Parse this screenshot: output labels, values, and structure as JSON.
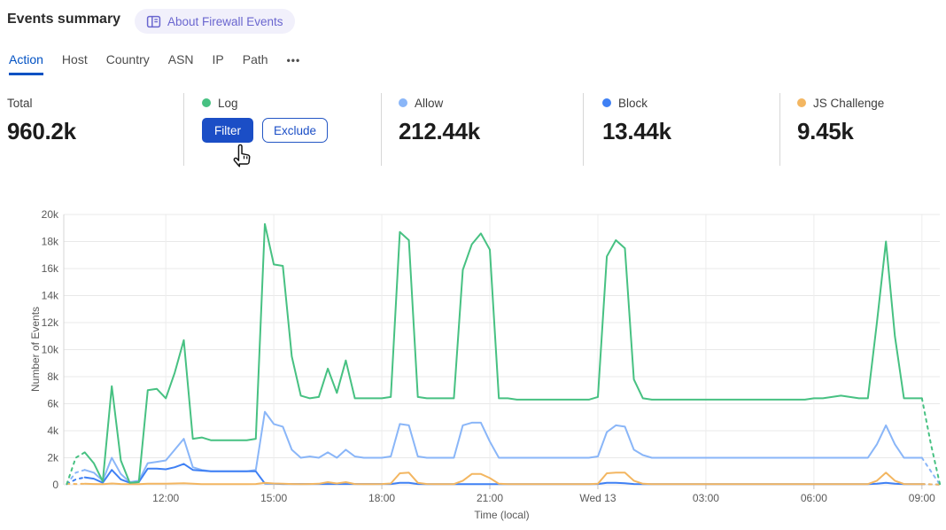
{
  "header": {
    "title": "Events summary",
    "about_badge": {
      "label": "About Firewall Events",
      "icon": "book-icon",
      "bg": "#f1f0fb",
      "color": "#6a66cf"
    }
  },
  "tabs": {
    "items": [
      {
        "label": "Action",
        "active": true
      },
      {
        "label": "Host",
        "active": false
      },
      {
        "label": "Country",
        "active": false
      },
      {
        "label": "ASN",
        "active": false
      },
      {
        "label": "IP",
        "active": false
      },
      {
        "label": "Path",
        "active": false
      },
      {
        "label": "•••",
        "active": false
      }
    ],
    "active_color": "#0051c3"
  },
  "stats": {
    "total": {
      "label": "Total",
      "value": "960.2k"
    },
    "cards": [
      {
        "label": "Log",
        "color": "#47c182",
        "filter_label": "Filter",
        "exclude_label": "Exclude"
      },
      {
        "label": "Allow",
        "color": "#8ab6f8",
        "value": "212.44k"
      },
      {
        "label": "Block",
        "color": "#3f80f4",
        "value": "13.44k"
      },
      {
        "label": "JS Challenge",
        "color": "#f3b661",
        "value": "9.45k"
      }
    ]
  },
  "chart_data": {
    "type": "line",
    "title": "Firewall events over time",
    "xlabel": "Time (local)",
    "ylabel": "Number of Events",
    "ylim": [
      0,
      20000
    ],
    "grid": true,
    "legend_position": "top-stat-cards",
    "x_start_hour": 9.25,
    "x_step_hours": 0.25,
    "x_note": "hours since Tue 00:00 local; 24 = Wed 13 00:00; dashed head/tail = incomplete buckets; values estimated from chart",
    "yticks": [
      {
        "value": 0,
        "label": "0"
      },
      {
        "value": 2000,
        "label": "2k"
      },
      {
        "value": 4000,
        "label": "4k"
      },
      {
        "value": 6000,
        "label": "6k"
      },
      {
        "value": 8000,
        "label": "8k"
      },
      {
        "value": 10000,
        "label": "10k"
      },
      {
        "value": 12000,
        "label": "12k"
      },
      {
        "value": 14000,
        "label": "14k"
      },
      {
        "value": 16000,
        "label": "16k"
      },
      {
        "value": 18000,
        "label": "18k"
      },
      {
        "value": 20000,
        "label": "20k"
      }
    ],
    "xticks": [
      {
        "hour": 12,
        "label": "12:00"
      },
      {
        "hour": 15,
        "label": "15:00"
      },
      {
        "hour": 18,
        "label": "18:00"
      },
      {
        "hour": 21,
        "label": "21:00"
      },
      {
        "hour": 24,
        "label": "Wed 13"
      },
      {
        "hour": 27,
        "label": "03:00"
      },
      {
        "hour": 30,
        "label": "06:00"
      },
      {
        "hour": 33,
        "label": "09:00"
      }
    ],
    "draw_order": [
      1,
      2,
      3,
      0
    ],
    "series": [
      {
        "name": "Log",
        "color": "#47c182",
        "dash_head_points": 2,
        "dash_tail_points": 2,
        "values": [
          50,
          2000,
          2400,
          1600,
          250,
          7300,
          1800,
          150,
          200,
          7000,
          7100,
          6400,
          8300,
          10700,
          3400,
          3500,
          3300,
          3300,
          3300,
          3300,
          3300,
          3400,
          19300,
          16300,
          16200,
          9500,
          6600,
          6400,
          6500,
          8600,
          6800,
          9200,
          6400,
          6400,
          6400,
          6400,
          6500,
          18700,
          18100,
          6500,
          6400,
          6400,
          6400,
          6400,
          15900,
          17800,
          18600,
          17400,
          6400,
          6400,
          6300,
          6300,
          6300,
          6300,
          6300,
          6300,
          6300,
          6300,
          6300,
          6500,
          16900,
          18100,
          17500,
          7800,
          6400,
          6300,
          6300,
          6300,
          6300,
          6300,
          6300,
          6300,
          6300,
          6300,
          6300,
          6300,
          6300,
          6300,
          6300,
          6300,
          6300,
          6300,
          6300,
          6400,
          6400,
          6500,
          6600,
          6500,
          6400,
          6400,
          12000,
          18000,
          11000,
          6400,
          6400,
          6400,
          3000,
          50
        ]
      },
      {
        "name": "Allow",
        "color": "#8ab6f8",
        "dash_head_points": 2,
        "dash_tail_points": 2,
        "values": [
          50,
          900,
          1100,
          900,
          300,
          2000,
          800,
          200,
          300,
          1600,
          1700,
          1800,
          2600,
          3400,
          1300,
          1100,
          1000,
          1000,
          1000,
          1000,
          1000,
          1100,
          5400,
          4500,
          4300,
          2600,
          2000,
          2100,
          2000,
          2400,
          2000,
          2600,
          2100,
          2000,
          2000,
          2000,
          2100,
          4500,
          4400,
          2100,
          2000,
          2000,
          2000,
          2000,
          4400,
          4600,
          4600,
          3200,
          2000,
          2000,
          2000,
          2000,
          2000,
          2000,
          2000,
          2000,
          2000,
          2000,
          2000,
          2100,
          3900,
          4400,
          4300,
          2600,
          2200,
          2000,
          2000,
          2000,
          2000,
          2000,
          2000,
          2000,
          2000,
          2000,
          2000,
          2000,
          2000,
          2000,
          2000,
          2000,
          2000,
          2000,
          2000,
          2000,
          2000,
          2000,
          2000,
          2000,
          2000,
          2000,
          3000,
          4400,
          3000,
          2000,
          2000,
          2000,
          1000,
          20
        ]
      },
      {
        "name": "Block",
        "color": "#3f80f4",
        "dash_head_points": 2,
        "dash_tail_points": 2,
        "values": [
          50,
          400,
          550,
          450,
          150,
          1100,
          400,
          150,
          200,
          1200,
          1200,
          1150,
          1300,
          1550,
          1100,
          1050,
          1000,
          1000,
          1000,
          1000,
          1000,
          1000,
          100,
          80,
          60,
          60,
          60,
          60,
          60,
          60,
          60,
          60,
          60,
          60,
          60,
          60,
          60,
          150,
          150,
          60,
          50,
          50,
          50,
          50,
          50,
          50,
          50,
          50,
          50,
          50,
          50,
          50,
          50,
          50,
          50,
          50,
          50,
          50,
          50,
          60,
          150,
          150,
          120,
          60,
          50,
          50,
          50,
          50,
          50,
          50,
          50,
          50,
          50,
          50,
          50,
          50,
          50,
          50,
          50,
          50,
          50,
          50,
          50,
          50,
          50,
          50,
          50,
          50,
          50,
          50,
          80,
          150,
          80,
          50,
          50,
          50,
          30,
          10
        ]
      },
      {
        "name": "JS Challenge",
        "color": "#f3b661",
        "dash_head_points": 2,
        "dash_tail_points": 2,
        "values": [
          80,
          60,
          80,
          60,
          50,
          100,
          60,
          50,
          50,
          80,
          80,
          80,
          100,
          120,
          80,
          50,
          50,
          50,
          50,
          50,
          50,
          60,
          150,
          100,
          80,
          60,
          50,
          60,
          80,
          200,
          100,
          200,
          60,
          50,
          50,
          60,
          100,
          850,
          900,
          150,
          60,
          50,
          50,
          50,
          300,
          800,
          800,
          500,
          80,
          50,
          50,
          50,
          50,
          50,
          50,
          50,
          50,
          50,
          50,
          80,
          850,
          900,
          900,
          300,
          80,
          50,
          50,
          50,
          50,
          50,
          50,
          50,
          50,
          50,
          50,
          50,
          50,
          50,
          50,
          50,
          50,
          50,
          50,
          50,
          50,
          50,
          50,
          50,
          50,
          50,
          300,
          900,
          300,
          60,
          50,
          50,
          30,
          10
        ]
      }
    ]
  }
}
